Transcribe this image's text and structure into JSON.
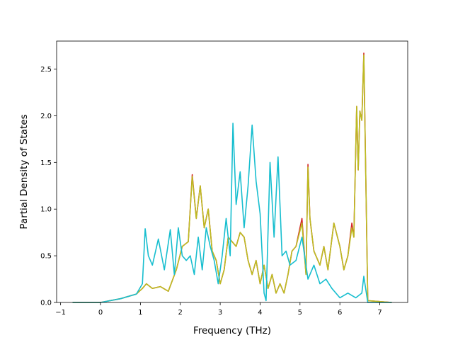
{
  "chart_data": {
    "type": "line",
    "title": "",
    "xlabel": "Frequency (THz)",
    "ylabel": "Partial Density of States",
    "xlim": [
      -1.1,
      7.7
    ],
    "ylim": [
      0.0,
      2.8
    ],
    "x_ticks": [
      -1,
      0,
      1,
      2,
      3,
      4,
      5,
      6,
      7
    ],
    "y_ticks": [
      0.0,
      0.5,
      1.0,
      1.5,
      2.0,
      2.5
    ],
    "x_tick_labels": [
      "−1",
      "0",
      "1",
      "2",
      "3",
      "4",
      "5",
      "6",
      "7"
    ],
    "y_tick_labels": [
      "0.0",
      "0.5",
      "1.0",
      "1.5",
      "2.0",
      "2.5"
    ],
    "grid": false,
    "legend": "none",
    "series": [
      {
        "color": "#d62728",
        "x": [
          -0.7,
          0.0,
          0.5,
          0.9,
          1.05,
          1.15,
          1.3,
          1.5,
          1.7,
          1.9,
          2.05,
          2.2,
          2.3,
          2.4,
          2.5,
          2.6,
          2.7,
          2.8,
          2.9,
          3.0,
          3.1,
          3.2,
          3.3,
          3.4,
          3.5,
          3.6,
          3.7,
          3.8,
          3.9,
          4.0,
          4.1,
          4.2,
          4.3,
          4.4,
          4.5,
          4.6,
          4.7,
          4.8,
          4.9,
          5.05,
          5.15,
          5.2,
          5.25,
          5.35,
          5.5,
          5.6,
          5.7,
          5.85,
          6.0,
          6.1,
          6.2,
          6.3,
          6.35,
          6.42,
          6.46,
          6.5,
          6.55,
          6.6,
          6.7,
          7.3
        ],
        "values": [
          0.0,
          0.0,
          0.04,
          0.09,
          0.15,
          0.2,
          0.15,
          0.17,
          0.12,
          0.35,
          0.6,
          0.65,
          1.37,
          0.9,
          1.25,
          0.8,
          1.0,
          0.55,
          0.45,
          0.2,
          0.35,
          0.7,
          0.65,
          0.6,
          0.75,
          0.7,
          0.45,
          0.3,
          0.45,
          0.2,
          0.4,
          0.15,
          0.3,
          0.1,
          0.2,
          0.1,
          0.3,
          0.55,
          0.6,
          0.9,
          0.3,
          1.48,
          0.9,
          0.55,
          0.4,
          0.6,
          0.35,
          0.85,
          0.6,
          0.35,
          0.5,
          0.85,
          0.7,
          2.1,
          1.42,
          2.05,
          1.95,
          2.67,
          0.02,
          0.0
        ]
      },
      {
        "color": "#bcbd22",
        "x": [
          -0.7,
          0.0,
          0.5,
          0.9,
          1.05,
          1.15,
          1.3,
          1.5,
          1.7,
          1.9,
          2.05,
          2.2,
          2.3,
          2.4,
          2.5,
          2.6,
          2.7,
          2.8,
          2.9,
          3.0,
          3.1,
          3.2,
          3.3,
          3.4,
          3.5,
          3.6,
          3.7,
          3.8,
          3.9,
          4.0,
          4.1,
          4.2,
          4.3,
          4.4,
          4.5,
          4.6,
          4.7,
          4.8,
          4.9,
          5.05,
          5.15,
          5.2,
          5.25,
          5.35,
          5.5,
          5.6,
          5.7,
          5.85,
          6.0,
          6.1,
          6.2,
          6.3,
          6.35,
          6.42,
          6.46,
          6.5,
          6.55,
          6.6,
          6.7,
          7.3
        ],
        "values": [
          0.0,
          0.0,
          0.04,
          0.09,
          0.15,
          0.2,
          0.15,
          0.17,
          0.12,
          0.35,
          0.6,
          0.65,
          1.35,
          0.9,
          1.25,
          0.8,
          1.0,
          0.55,
          0.45,
          0.2,
          0.35,
          0.7,
          0.65,
          0.6,
          0.75,
          0.7,
          0.45,
          0.3,
          0.45,
          0.2,
          0.4,
          0.15,
          0.3,
          0.1,
          0.2,
          0.1,
          0.3,
          0.55,
          0.6,
          0.85,
          0.3,
          1.45,
          0.9,
          0.55,
          0.4,
          0.6,
          0.35,
          0.85,
          0.6,
          0.35,
          0.5,
          0.8,
          0.7,
          2.1,
          1.42,
          2.05,
          1.95,
          2.65,
          0.02,
          0.0
        ]
      },
      {
        "color": "#17becf",
        "x": [
          -0.7,
          0.0,
          0.5,
          0.9,
          1.05,
          1.12,
          1.2,
          1.3,
          1.45,
          1.6,
          1.75,
          1.85,
          1.95,
          2.05,
          2.15,
          2.25,
          2.35,
          2.45,
          2.55,
          2.65,
          2.75,
          2.85,
          2.95,
          3.05,
          3.15,
          3.25,
          3.32,
          3.4,
          3.5,
          3.6,
          3.7,
          3.8,
          3.9,
          4.0,
          4.1,
          4.15,
          4.25,
          4.35,
          4.45,
          4.55,
          4.65,
          4.75,
          4.9,
          5.05,
          5.2,
          5.35,
          5.5,
          5.65,
          5.8,
          6.0,
          6.2,
          6.4,
          6.55,
          6.6,
          6.7,
          7.3
        ],
        "values": [
          0.0,
          0.0,
          0.04,
          0.09,
          0.2,
          0.79,
          0.5,
          0.4,
          0.68,
          0.35,
          0.78,
          0.3,
          0.8,
          0.5,
          0.45,
          0.5,
          0.3,
          0.7,
          0.35,
          0.8,
          0.6,
          0.45,
          0.2,
          0.5,
          0.9,
          0.5,
          1.92,
          1.05,
          1.4,
          0.8,
          1.25,
          1.9,
          1.3,
          0.95,
          0.1,
          0.02,
          1.5,
          0.7,
          1.56,
          0.5,
          0.55,
          0.4,
          0.45,
          0.7,
          0.25,
          0.4,
          0.2,
          0.25,
          0.15,
          0.05,
          0.1,
          0.05,
          0.1,
          0.28,
          0.0,
          0.0
        ]
      }
    ]
  }
}
